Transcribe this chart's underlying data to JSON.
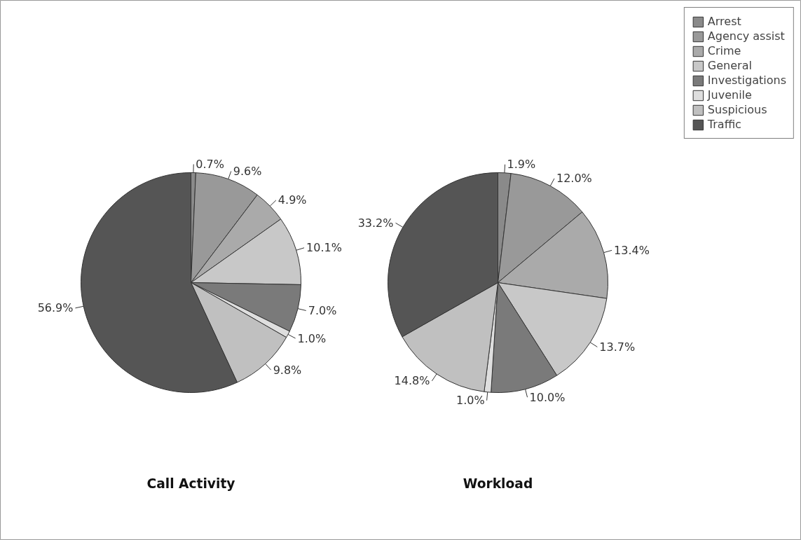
{
  "chart_data": [
    {
      "type": "pie",
      "title": "Call Activity",
      "categories": [
        "Arrest",
        "Agency assist",
        "Crime",
        "General",
        "Investigations",
        "Juvenile",
        "Suspicious",
        "Traffic"
      ],
      "values": [
        0.7,
        9.6,
        4.9,
        10.1,
        7.0,
        1.0,
        9.8,
        56.9
      ],
      "value_labels": [
        "0.7%",
        "9.6%",
        "4.9%",
        "10.1%",
        "7.0%",
        "1.0%",
        "9.8%",
        "56.9%"
      ],
      "colors": [
        "#8a8a8a",
        "#999999",
        "#aaaaaa",
        "#c8c8c8",
        "#7a7a7a",
        "#dedede",
        "#c0c0c0",
        "#555555"
      ],
      "legend": "top right"
    },
    {
      "type": "pie",
      "title": "Workload",
      "categories": [
        null,
        null,
        null,
        null,
        null,
        null,
        null,
        null
      ],
      "values": [
        1.9,
        12.0,
        13.4,
        13.7,
        10.0,
        1.0,
        14.8,
        33.2
      ],
      "value_labels": [
        "1.9%",
        "12.0%",
        "13.4%",
        "13.7%",
        "10.0%",
        "1.0%",
        "14.8%",
        "33.2%"
      ],
      "colors": [
        "#8a8a8a",
        "#999999",
        "#aaaaaa",
        "#c8c8c8",
        "#7a7a7a",
        "#dedede",
        "#c0c0c0",
        "#555555"
      ]
    }
  ]
}
